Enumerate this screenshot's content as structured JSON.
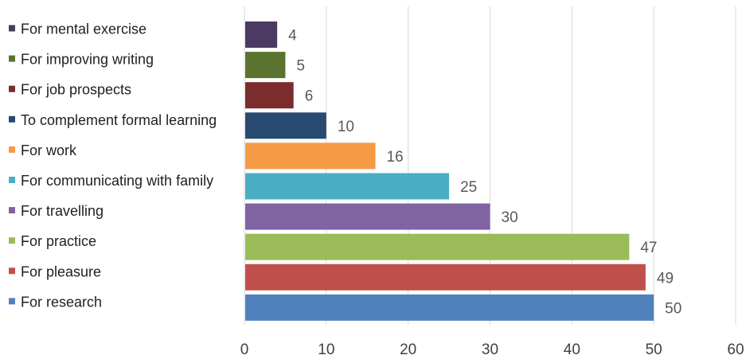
{
  "chart_data": {
    "type": "bar",
    "orientation": "horizontal",
    "title": "",
    "xlabel": "",
    "ylabel": "",
    "xlim": [
      0,
      60
    ],
    "x_ticks": [
      0,
      10,
      20,
      30,
      40,
      50,
      60
    ],
    "grid": "vertical",
    "legend_position": "left",
    "categories": [
      "For mental exercise",
      "For improving writing",
      "For job prospects",
      "To complement formal learning",
      "For work",
      "For communicating with family",
      "For travelling",
      "For practice",
      "For pleasure",
      "For research"
    ],
    "values": [
      4,
      5,
      6,
      10,
      16,
      25,
      30,
      47,
      49,
      50
    ],
    "colors": [
      "#4b3a62",
      "#5a7430",
      "#7b2c2c",
      "#294a70",
      "#f59a45",
      "#49aec4",
      "#8064a2",
      "#9bbb59",
      "#c0504d",
      "#4f81bd"
    ]
  }
}
